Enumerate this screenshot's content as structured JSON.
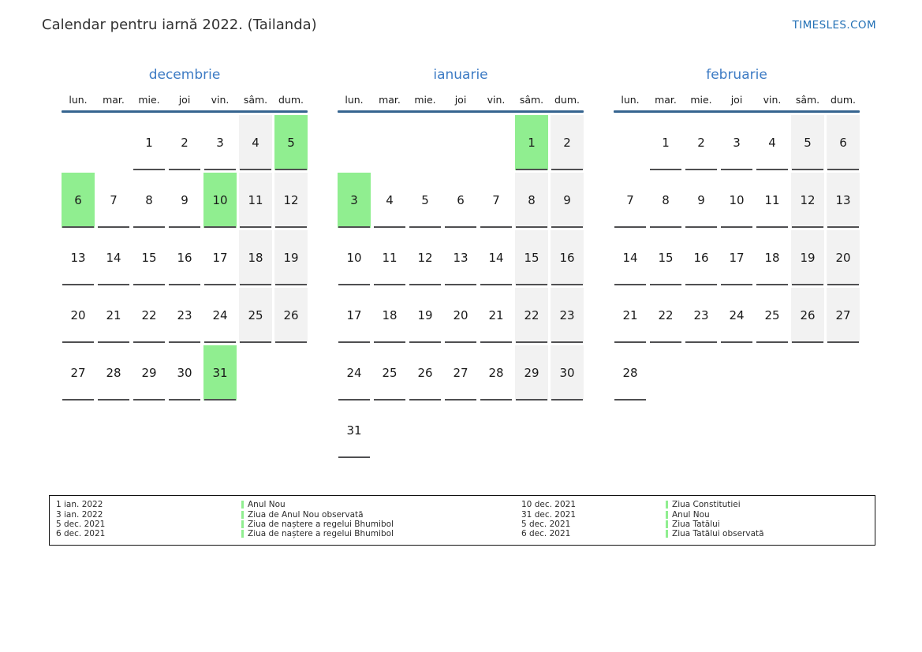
{
  "header": {
    "title": "Calendar pentru iarnă 2022. (Tailanda)",
    "site_link": "TIMESLES.COM"
  },
  "calendar": {
    "weekday_headers": [
      "lun.",
      "mar.",
      "mie.",
      "joi",
      "vin.",
      "sâm.",
      "dum."
    ],
    "months": [
      {
        "name": "decembrie",
        "weeks": [
          [
            null,
            null,
            1,
            2,
            3,
            4,
            5
          ],
          [
            6,
            7,
            8,
            9,
            10,
            11,
            12
          ],
          [
            13,
            14,
            15,
            16,
            17,
            18,
            19
          ],
          [
            20,
            21,
            22,
            23,
            24,
            25,
            26
          ],
          [
            27,
            28,
            29,
            30,
            31,
            null,
            null
          ]
        ],
        "holiday_days": [
          5,
          6,
          10,
          31
        ]
      },
      {
        "name": "ianuarie",
        "weeks": [
          [
            null,
            null,
            null,
            null,
            null,
            1,
            2
          ],
          [
            3,
            4,
            5,
            6,
            7,
            8,
            9
          ],
          [
            10,
            11,
            12,
            13,
            14,
            15,
            16
          ],
          [
            17,
            18,
            19,
            20,
            21,
            22,
            23
          ],
          [
            24,
            25,
            26,
            27,
            28,
            29,
            30
          ],
          [
            31,
            null,
            null,
            null,
            null,
            null,
            null
          ]
        ],
        "holiday_days": [
          1,
          3
        ]
      },
      {
        "name": "februarie",
        "weeks": [
          [
            null,
            1,
            2,
            3,
            4,
            5,
            6
          ],
          [
            7,
            8,
            9,
            10,
            11,
            12,
            13
          ],
          [
            14,
            15,
            16,
            17,
            18,
            19,
            20
          ],
          [
            21,
            22,
            23,
            24,
            25,
            26,
            27
          ],
          [
            28,
            null,
            null,
            null,
            null,
            null,
            null
          ]
        ],
        "holiday_days": []
      }
    ]
  },
  "legend": {
    "left_column": [
      {
        "date": "1 ian. 2022",
        "name": "Anul Nou"
      },
      {
        "date": "3 ian. 2022",
        "name": "Ziua de Anul Nou observată"
      },
      {
        "date": "5 dec. 2021",
        "name": "Ziua de naștere a regelui Bhumibol"
      },
      {
        "date": "6 dec. 2021",
        "name": "Ziua de naștere a regelui Bhumibol"
      }
    ],
    "right_column": [
      {
        "date": "10 dec. 2021",
        "name": "Ziua Constitutiei"
      },
      {
        "date": "31 dec. 2021",
        "name": "Anul Nou"
      },
      {
        "date": "5 dec. 2021",
        "name": "Ziua Tatălui"
      },
      {
        "date": "6 dec. 2021",
        "name": "Ziua Tatălui observată"
      }
    ]
  },
  "colors": {
    "site_link_blue": "#2270b5",
    "month_title_blue": "#3d7bc4",
    "header_line_blue": "#35648f",
    "holiday_green": "#90ee90",
    "weekend_gray": "#f2f2f2",
    "cell_underline_gray": "#4f4f51",
    "title_text": "#333333",
    "body_text": "#1a1a1a"
  }
}
